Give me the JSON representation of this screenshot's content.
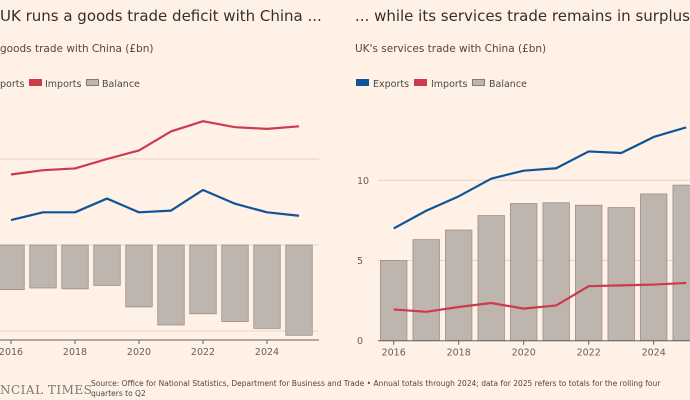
{
  "colors": {
    "background": "#fff1e5",
    "exports": "#0f5499",
    "imports": "#cc3a4b",
    "balance": "#beb6ae"
  },
  "footer": {
    "logo": "NCIAL TIMES",
    "source_line1": "Source: Office for National Statistics, Department for Business and Trade • Annual totals through 2024; data for 2025 refers to totals for the rolling four",
    "source_line2": "quarters to Q2"
  },
  "chart_data": [
    {
      "type": "bar+line",
      "title": "UK runs a goods trade deficit with China ...",
      "subtitle": "goods trade with China (£bn)",
      "legend": [
        "Exports",
        "Imports",
        "Balance"
      ],
      "legend_labels_visible": [
        "ports",
        "Imports",
        "Balance"
      ],
      "x": [
        2016,
        2017,
        2018,
        2019,
        2020,
        2021,
        2022,
        2023,
        2024,
        2025
      ],
      "xticks": [
        "2016",
        "2018",
        "2020",
        "2022",
        "2024"
      ],
      "yticks": [
        -50,
        0,
        50
      ],
      "ylim": [
        -55,
        80
      ],
      "grid": true,
      "legend_placement": "top-left",
      "series": [
        {
          "name": "Exports",
          "type": "line",
          "values": [
            14.5,
            19,
            19,
            27,
            19,
            20,
            32,
            24,
            19,
            17
          ]
        },
        {
          "name": "Imports",
          "type": "line",
          "values": [
            41,
            43.5,
            44.5,
            50,
            55,
            66,
            72,
            68.5,
            67.5,
            69
          ]
        },
        {
          "name": "Balance",
          "type": "bar",
          "values": [
            -26,
            -25,
            -25.5,
            -23.5,
            -36,
            -46.5,
            -40,
            -44.5,
            -48.5,
            -52.5
          ]
        }
      ]
    },
    {
      "type": "bar+line",
      "title": "... while its services trade remains in surplus",
      "subtitle": "UK's services trade with China (£bn)",
      "legend": [
        "Exports",
        "Imports",
        "Balance"
      ],
      "legend_labels_visible": [
        "Exports",
        "Imports",
        "Balance"
      ],
      "x": [
        2016,
        2017,
        2018,
        2019,
        2020,
        2021,
        2022,
        2023,
        2024,
        2025
      ],
      "xticks": [
        "2016",
        "2018",
        "2020",
        "2022",
        "2024"
      ],
      "yticks": [
        0,
        5,
        10
      ],
      "ytick_labels": [
        "0",
        "5",
        "10"
      ],
      "ylim": [
        0,
        14
      ],
      "grid": true,
      "legend_placement": "top-left",
      "series": [
        {
          "name": "Exports",
          "type": "line",
          "values": [
            7.0,
            8.1,
            9.0,
            10.1,
            10.6,
            10.75,
            11.8,
            11.7,
            12.7,
            13.3
          ]
        },
        {
          "name": "Imports",
          "type": "line",
          "values": [
            1.95,
            1.8,
            2.1,
            2.35,
            2.0,
            2.2,
            3.4,
            3.45,
            3.5,
            3.6
          ]
        },
        {
          "name": "Balance",
          "type": "bar",
          "values": [
            5.0,
            6.3,
            6.9,
            7.8,
            8.55,
            8.6,
            8.45,
            8.3,
            9.15,
            9.7
          ]
        }
      ]
    }
  ]
}
